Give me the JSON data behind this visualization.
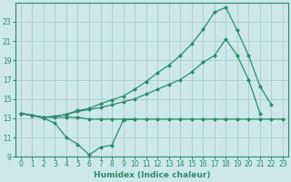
{
  "xlabel": "Humidex (Indice chaleur)",
  "color": "#2E8B6B",
  "bg_color": "#cce8e8",
  "grid_color": "#aacccc",
  "ylim": [
    9,
    25
  ],
  "xlim": [
    -0.5,
    23.5
  ],
  "yticks": [
    9,
    11,
    13,
    15,
    17,
    19,
    21,
    23
  ],
  "xticks": [
    0,
    1,
    2,
    3,
    4,
    5,
    6,
    7,
    8,
    9,
    10,
    11,
    12,
    13,
    14,
    15,
    16,
    17,
    18,
    19,
    20,
    21,
    22,
    23
  ],
  "line_dip_x": [
    0,
    1,
    2,
    3,
    4,
    5,
    6,
    7,
    8,
    9,
    10
  ],
  "line_dip_y": [
    13.5,
    13.3,
    13.0,
    12.5,
    11.0,
    10.3,
    9.2,
    10.0,
    10.2,
    12.8,
    12.9
  ],
  "line_flat_x": [
    0,
    1,
    2,
    3,
    4,
    5,
    6,
    7,
    8,
    9,
    10,
    11,
    12,
    13,
    14,
    15,
    16,
    17,
    18,
    19,
    20,
    21,
    22,
    23
  ],
  "line_flat_y": [
    13.5,
    13.3,
    13.1,
    13.1,
    13.1,
    13.1,
    12.9,
    12.9,
    12.9,
    12.9,
    12.9,
    12.9,
    12.9,
    12.9,
    12.9,
    12.9,
    12.9,
    12.9,
    12.9,
    12.9,
    12.9,
    12.9,
    12.9,
    12.9
  ],
  "line_top_x": [
    0,
    1,
    2,
    3,
    4,
    5,
    6,
    7,
    8,
    9,
    10,
    11,
    12,
    13,
    14,
    15,
    16,
    17,
    18,
    19,
    20,
    21,
    22
  ],
  "line_top_y": [
    13.5,
    13.3,
    13.1,
    13.2,
    13.4,
    13.8,
    14.0,
    14.5,
    14.9,
    15.3,
    16.0,
    16.8,
    17.7,
    18.5,
    19.5,
    20.7,
    22.2,
    24.0,
    24.5,
    22.1,
    19.5,
    16.3,
    14.4
  ],
  "line_mid_x": [
    0,
    1,
    2,
    3,
    4,
    5,
    6,
    7,
    8,
    9,
    10,
    11,
    12,
    13,
    14,
    15,
    16,
    17,
    18,
    19,
    20,
    21
  ],
  "line_mid_y": [
    13.5,
    13.3,
    13.1,
    13.2,
    13.4,
    13.7,
    13.9,
    14.1,
    14.4,
    14.7,
    15.0,
    15.5,
    16.0,
    16.5,
    17.0,
    17.8,
    18.8,
    19.5,
    21.2,
    19.5,
    17.0,
    13.5
  ]
}
